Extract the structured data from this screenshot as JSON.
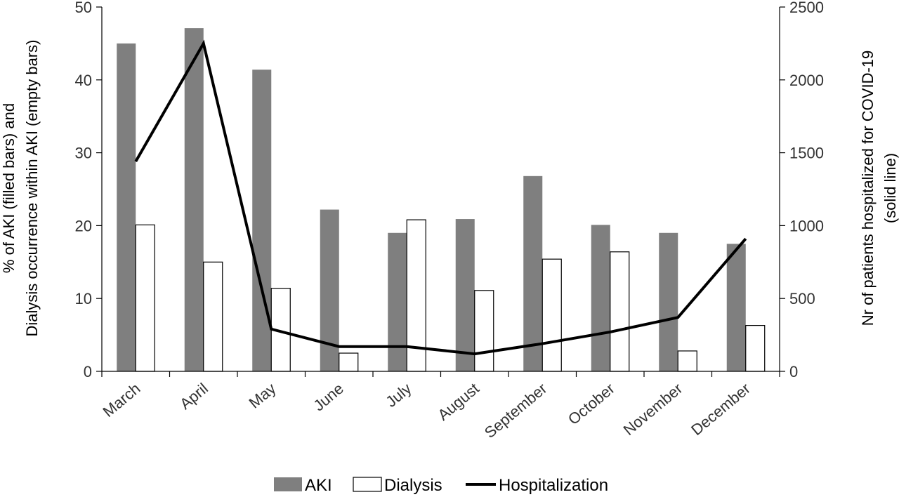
{
  "chart_data": {
    "type": "bar",
    "categories": [
      "March",
      "April",
      "May",
      "June",
      "July",
      "August",
      "September",
      "October",
      "November",
      "December"
    ],
    "series": [
      {
        "name": "AKI",
        "kind": "bar",
        "axis": "left",
        "color": "#7f7f7f",
        "values": [
          45,
          47.1,
          41.4,
          22.2,
          19,
          20.9,
          26.8,
          20.1,
          19,
          17.5
        ]
      },
      {
        "name": "Dialysis",
        "kind": "bar",
        "axis": "left",
        "color": "#ffffff",
        "values": [
          20.1,
          15,
          11.4,
          2.5,
          20.8,
          11.1,
          15.4,
          16.4,
          2.8,
          6.3
        ]
      },
      {
        "name": "Hospitalization",
        "kind": "line",
        "axis": "right",
        "color": "#000000",
        "values": [
          1440,
          2250,
          290,
          170,
          170,
          120,
          190,
          270,
          370,
          910
        ]
      }
    ],
    "ylabel_left": [
      "% of AKI (filled bars) and",
      "Dialysis occurrence within AKI (empty bars)"
    ],
    "ylabel_right": [
      "Nr of patients hospitalized for COVID-19",
      "(solid line)"
    ],
    "ylim_left": [
      0,
      50
    ],
    "yticks_left": [
      "0",
      "10",
      "20",
      "30",
      "40",
      "50"
    ],
    "ylim_right": [
      0,
      2500
    ],
    "yticks_right": [
      "0",
      "500",
      "1000",
      "1500",
      "2000",
      "2500"
    ],
    "grid": false,
    "legend_position": "bottom"
  }
}
